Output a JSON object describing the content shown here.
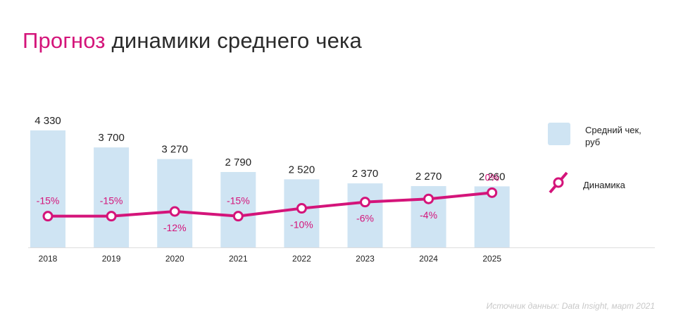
{
  "title": {
    "accent": "Прогноз",
    "rest": "динамики среднего чека"
  },
  "legend": {
    "bar_label": "Средний чек, руб",
    "line_label": "Динамика"
  },
  "source": "Источник данных: Data Insight, март 2021",
  "colors": {
    "bar": "#cfe4f3",
    "line": "#d4147a",
    "text": "#222222",
    "axis": "#dddddd"
  },
  "chart_data": {
    "type": "bar",
    "categories": [
      "2018",
      "2019",
      "2020",
      "2021",
      "2022",
      "2023",
      "2024",
      "2025"
    ],
    "series": [
      {
        "name": "Средний чек, руб",
        "type": "bar",
        "values": [
          4330,
          3700,
          3270,
          2790,
          2520,
          2370,
          2270,
          2260
        ],
        "labels": [
          "4 330",
          "3 700",
          "3 270",
          "2 790",
          "2 520",
          "2 370",
          "2 270",
          "2 260"
        ]
      },
      {
        "name": "Динамика",
        "type": "line",
        "values": [
          -15,
          -15,
          -12,
          -15,
          -10,
          -6,
          -4,
          0
        ],
        "labels": [
          "-15%",
          "-15%",
          "-12%",
          "-15%",
          "-10%",
          "-6%",
          "-4%",
          "0%"
        ]
      }
    ],
    "ylim": [
      0,
      4330
    ],
    "line_ylim": [
      -30,
      15
    ],
    "grid": false,
    "legend_position": "right"
  }
}
